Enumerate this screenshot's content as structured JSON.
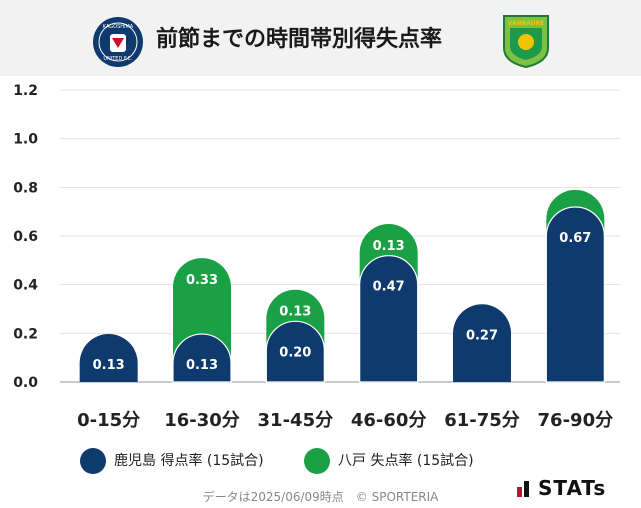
{
  "header": {
    "title": "前節までの時間帯別得失点率",
    "home_logo_text": "KAGOSHIMA UNITED FC",
    "away_logo_text": "VANRAURE"
  },
  "colors": {
    "home": "#0f3a6d",
    "away": "#1aa045",
    "header_bg": "#f2f2f2"
  },
  "chart_data": {
    "type": "bar",
    "stacked": true,
    "categories": [
      "0-15分",
      "16-30分",
      "31-45分",
      "46-60分",
      "61-75分",
      "76-90分"
    ],
    "series": [
      {
        "name": "鹿児島 得点率 (15試合)",
        "values": [
          0.13,
          0.13,
          0.2,
          0.47,
          0.27,
          0.67
        ]
      },
      {
        "name": "八戸 失点率 (15試合)",
        "values": [
          0.0,
          0.33,
          0.13,
          0.13,
          0.0,
          0.07
        ]
      }
    ],
    "series_labels": [
      [
        "0.13",
        "0.13",
        "0.20",
        "0.47",
        "0.27",
        "0.67"
      ],
      [
        "",
        "0.33",
        "0.13",
        "0.13",
        "",
        ""
      ]
    ],
    "y_ticks": [
      "0.0",
      "0.2",
      "0.4",
      "0.6",
      "0.8",
      "1.0",
      "1.2"
    ],
    "ylim": [
      0,
      1.2
    ],
    "grid": true
  },
  "legend": {
    "home_label": "鹿児島 得点率 (15試合)",
    "away_label": "八戸 失点率 (15試合)"
  },
  "footer": {
    "note": "データは2025/06/09時点　© SPORTERIA",
    "brand": "STATs"
  }
}
